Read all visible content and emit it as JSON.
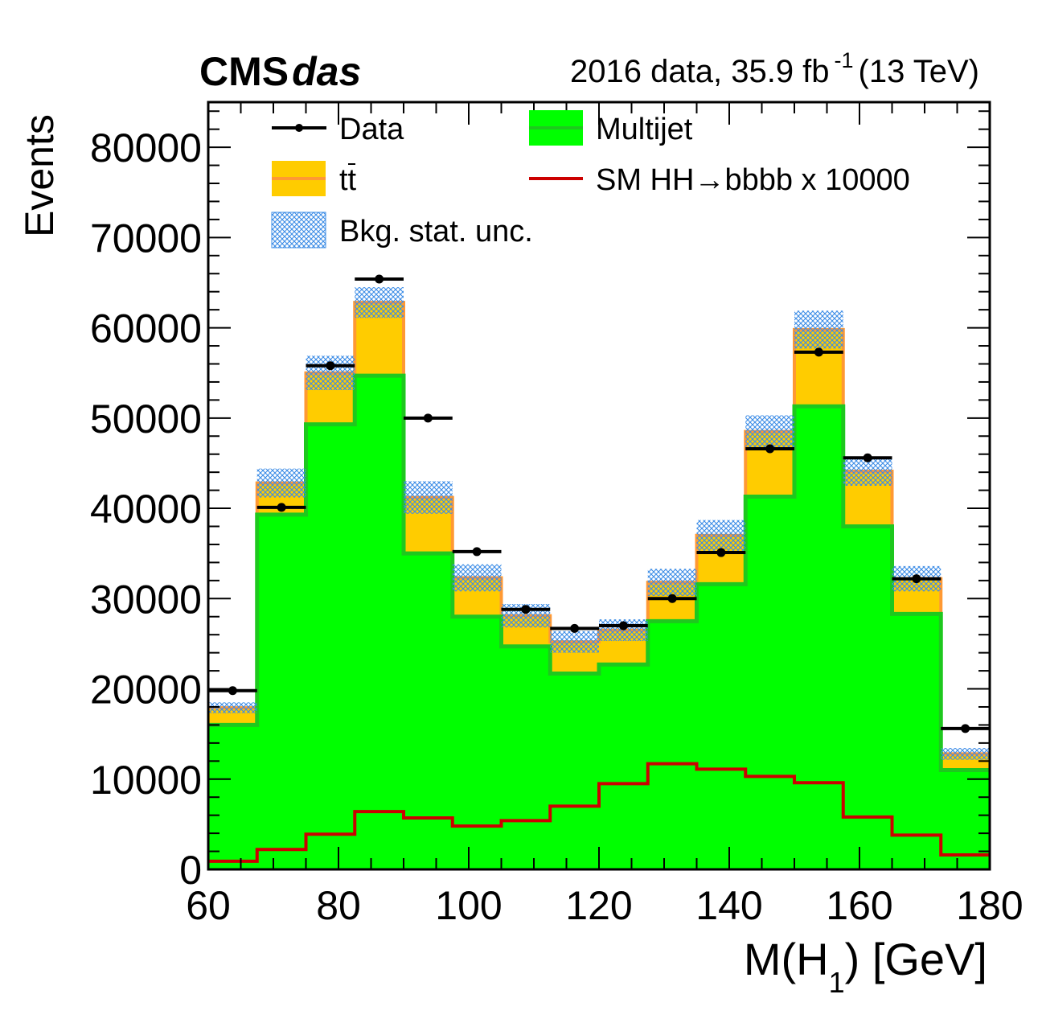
{
  "header": {
    "experiment": "CMS",
    "experiment_suffix": "das",
    "lumi_prefix": "2016 data, 35.9 fb",
    "lumi_exponent": "-1",
    "lumi_suffix": "(13 TeV)"
  },
  "legend": {
    "data": "Data",
    "multijet": "Multijet",
    "ttbar": "tt",
    "signal": "SM HH→bbbb x 10000",
    "unc": "Bkg. stat. unc."
  },
  "colors": {
    "multijet": "#00ff00",
    "multijet_line": "#1ec81e",
    "ttbar": "#ffcc00",
    "ttbar_line": "#ff9933",
    "signal": "#cc0000",
    "unc": "#3c8ce6",
    "data": "#000000"
  },
  "chart_data": {
    "type": "bar",
    "style": "stacked step histogram with data points",
    "xlabel_main": "M(H",
    "xlabel_sub": "1",
    "xlabel_end": ") [GeV]",
    "ylabel": "Events",
    "xlim": [
      60,
      180
    ],
    "ylim": [
      0,
      85000
    ],
    "x_ticks": [
      60,
      80,
      100,
      120,
      140,
      160,
      180
    ],
    "y_ticks": [
      0,
      10000,
      20000,
      30000,
      40000,
      50000,
      60000,
      70000,
      80000
    ],
    "bin_edges": [
      60,
      67.5,
      75,
      82.5,
      90,
      97.5,
      105,
      112.5,
      120,
      127.5,
      135,
      142.5,
      150,
      157.5,
      165,
      172.5,
      180
    ],
    "series": [
      {
        "name": "Multijet",
        "values": [
          16000,
          39300,
          49300,
          54700,
          35000,
          28000,
          24700,
          21700,
          22700,
          27500,
          31600,
          41300,
          51300,
          38000,
          28300,
          11000
        ]
      },
      {
        "name": "tt",
        "values": [
          1900,
          3500,
          5700,
          8100,
          6200,
          4300,
          3400,
          3500,
          3800,
          4300,
          5400,
          7200,
          8500,
          6100,
          3900,
          1800
        ]
      },
      {
        "name": "SM HH→bbbb x 10000",
        "values": [
          900,
          2200,
          3900,
          6400,
          5700,
          4800,
          5400,
          7000,
          9500,
          11700,
          11100,
          10300,
          9600,
          5800,
          3800,
          1600
        ]
      },
      {
        "name": "Data",
        "values": [
          19800,
          40100,
          55800,
          65400,
          50000,
          35200,
          28800,
          26700,
          27000,
          30000,
          35100,
          46600,
          57300,
          45600,
          32200,
          15600
        ]
      }
    ],
    "unc_half_width": [
      600,
      1600,
      1900,
      1700,
      1800,
      1500,
      1300,
      1200,
      1200,
      1500,
      1700,
      1800,
      2100,
      1600,
      1400,
      650
    ],
    "grid": false
  }
}
